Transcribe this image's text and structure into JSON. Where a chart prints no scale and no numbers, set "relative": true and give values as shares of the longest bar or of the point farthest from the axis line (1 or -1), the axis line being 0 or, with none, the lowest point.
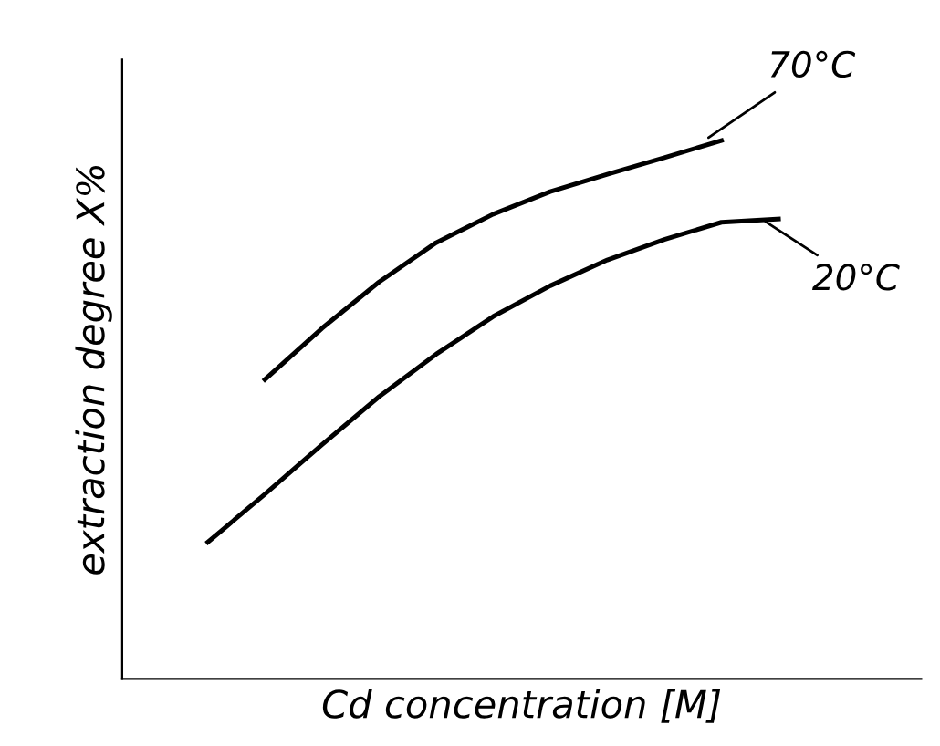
{
  "chart_data": {
    "type": "line",
    "relative": true,
    "xlabel": "Cd concentration [M]",
    "ylabel": "extraction degree X%",
    "categories": [
      null,
      null,
      null,
      null,
      null,
      null,
      null,
      null,
      null,
      null,
      null
    ],
    "series": [
      {
        "name": "70°C",
        "color": "#000000",
        "values": [
          null,
          0.556,
          0.651,
          0.737,
          0.81,
          0.863,
          0.905,
          0.937,
          0.968,
          1.0,
          null
        ]
      },
      {
        "name": "20°C",
        "color": "#000000",
        "values": [
          0.254,
          0.343,
          0.435,
          0.524,
          0.603,
          0.673,
          0.73,
          0.778,
          0.816,
          0.848,
          0.854
        ]
      }
    ],
    "marker": "none",
    "line_style": "solid"
  }
}
